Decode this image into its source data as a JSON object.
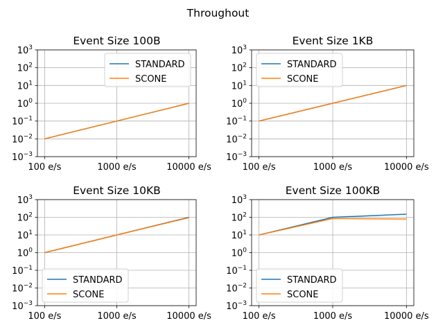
{
  "figure": {
    "suptitle": "Throughout"
  },
  "colors": {
    "STANDARD": "#1f77b4",
    "SCONE": "#ff7f0e",
    "grid": "#b0b0b0"
  },
  "chart_data": [
    {
      "type": "line",
      "title": "Event Size 100B",
      "categories": [
        "100 e/s",
        "1000 e/s",
        "10000 e/s"
      ],
      "yscale": "log",
      "ylim": [
        0.001,
        1000
      ],
      "yticks": [
        -3,
        -2,
        -1,
        0,
        1,
        2,
        3
      ],
      "grid": true,
      "legend": "upper right",
      "series": [
        {
          "name": "STANDARD",
          "values": [
            0.01,
            0.1,
            1
          ]
        },
        {
          "name": "SCONE",
          "values": [
            0.01,
            0.1,
            1
          ]
        }
      ]
    },
    {
      "type": "line",
      "title": "Event Size 1KB",
      "categories": [
        "100 e/s",
        "1000 e/s",
        "10000 e/s"
      ],
      "yscale": "log",
      "ylim": [
        0.001,
        1000
      ],
      "yticks": [
        -3,
        -2,
        -1,
        0,
        1,
        2,
        3
      ],
      "grid": true,
      "legend": "upper left",
      "series": [
        {
          "name": "STANDARD",
          "values": [
            0.1,
            1,
            10
          ]
        },
        {
          "name": "SCONE",
          "values": [
            0.1,
            1,
            10
          ]
        }
      ]
    },
    {
      "type": "line",
      "title": "Event Size 10KB",
      "categories": [
        "100 e/s",
        "1000 e/s",
        "10000 e/s"
      ],
      "yscale": "log",
      "ylim": [
        0.001,
        1000
      ],
      "yticks": [
        -3,
        -2,
        -1,
        0,
        1,
        2,
        3
      ],
      "grid": true,
      "legend": "lower left",
      "series": [
        {
          "name": "STANDARD",
          "values": [
            1,
            10,
            100
          ]
        },
        {
          "name": "SCONE",
          "values": [
            1,
            10,
            95
          ]
        }
      ]
    },
    {
      "type": "line",
      "title": "Event Size 100KB",
      "categories": [
        "100 e/s",
        "1000 e/s",
        "10000 e/s"
      ],
      "yscale": "log",
      "ylim": [
        0.001,
        1000
      ],
      "yticks": [
        -3,
        -2,
        -1,
        0,
        1,
        2,
        3
      ],
      "grid": true,
      "legend": "lower left",
      "series": [
        {
          "name": "STANDARD",
          "values": [
            10,
            100,
            150
          ]
        },
        {
          "name": "SCONE",
          "values": [
            10,
            85,
            80
          ]
        }
      ]
    }
  ]
}
